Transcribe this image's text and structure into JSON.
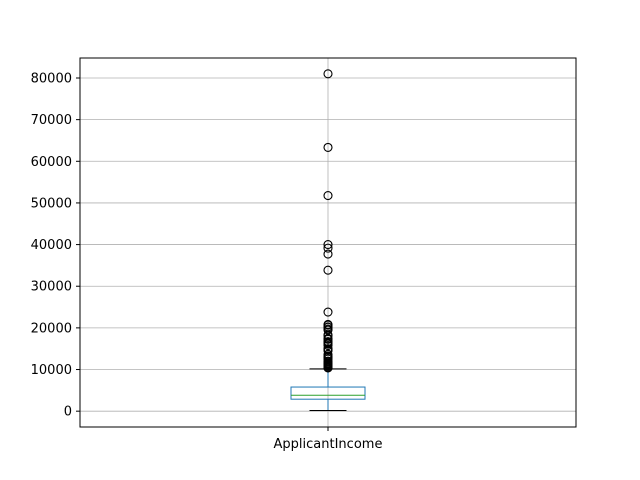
{
  "chart_data": {
    "type": "box",
    "title": "",
    "xlabel": "",
    "ylabel": "",
    "categories": [
      "ApplicantIncome"
    ],
    "ylim": [
      -3800,
      84800
    ],
    "yticks": [
      0,
      10000,
      20000,
      30000,
      40000,
      50000,
      60000,
      70000,
      80000
    ],
    "ytick_labels": [
      "0",
      "10000",
      "20000",
      "30000",
      "40000",
      "50000",
      "60000",
      "70000",
      "80000"
    ],
    "grid": true,
    "box": {
      "min": 150,
      "q1": 2877,
      "median": 3812,
      "q3": 5795,
      "whisker_high": 10171,
      "outliers": [
        10383,
        10408,
        10513,
        10750,
        10833,
        10890,
        11000,
        11146,
        11250,
        11417,
        11500,
        11757,
        12000,
        12500,
        12841,
        12876,
        13262,
        13650,
        14583,
        14683,
        14866,
        14880,
        15000,
        15759,
        16120,
        16250,
        16525,
        16667,
        16692,
        17263,
        17500,
        18165,
        18333,
        19484,
        19730,
        20166,
        20233,
        20667,
        20833,
        23803,
        33846,
        37719,
        39147,
        39999,
        51763,
        63337,
        81000
      ]
    },
    "colors": {
      "box": "#1f77b4",
      "median": "#2ca02c",
      "whisker": "#000000",
      "outlier": "#000000",
      "grid": "#b0b0b0"
    }
  }
}
